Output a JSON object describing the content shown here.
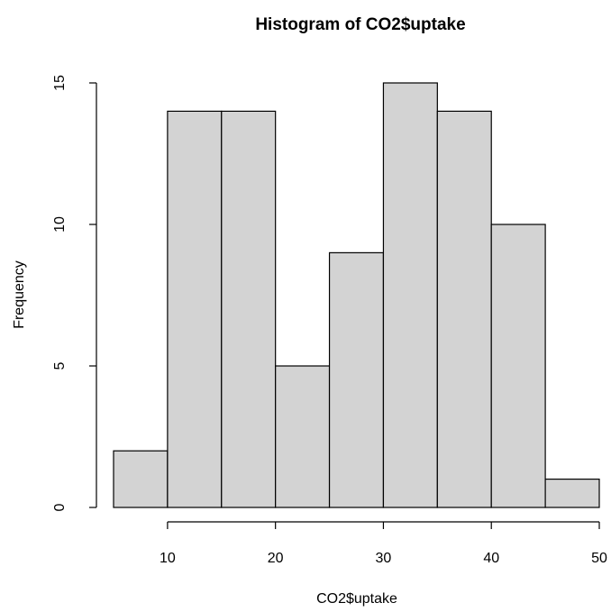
{
  "chart_data": {
    "type": "bar",
    "title": "Histogram of CO2$uptake",
    "xlabel": "CO2$uptake",
    "ylabel": "Frequency",
    "bins": [
      {
        "start": 5,
        "end": 10,
        "count": 2
      },
      {
        "start": 10,
        "end": 15,
        "count": 14
      },
      {
        "start": 15,
        "end": 20,
        "count": 14
      },
      {
        "start": 20,
        "end": 25,
        "count": 5
      },
      {
        "start": 25,
        "end": 30,
        "count": 9
      },
      {
        "start": 30,
        "end": 35,
        "count": 15
      },
      {
        "start": 35,
        "end": 40,
        "count": 14
      },
      {
        "start": 40,
        "end": 45,
        "count": 10
      },
      {
        "start": 45,
        "end": 50,
        "count": 1
      }
    ],
    "xticks": [
      10,
      20,
      30,
      40,
      50
    ],
    "yticks": [
      0,
      5,
      10,
      15
    ],
    "xlim": [
      5,
      50
    ],
    "ylim": [
      0,
      15
    ],
    "grid": false,
    "bar_color": "#d3d3d3",
    "edge_color": "#000000"
  }
}
